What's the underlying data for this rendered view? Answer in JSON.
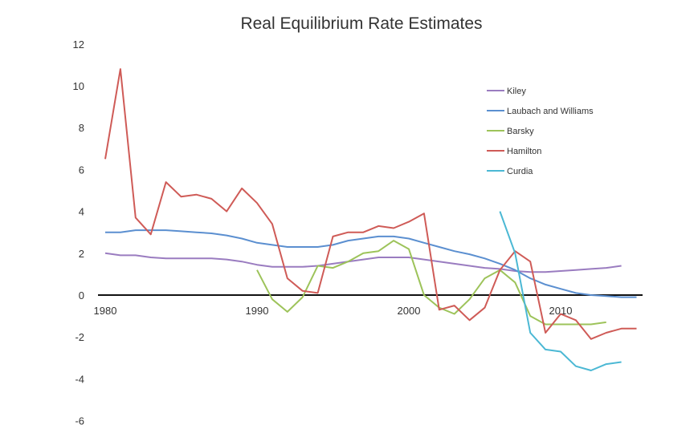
{
  "chart_data": {
    "type": "line",
    "title": "Real Equilibrium Rate Estimates",
    "xlabel": "",
    "ylabel": "",
    "xlim": [
      1979.5,
      2016
    ],
    "ylim": [
      -6,
      12
    ],
    "y_ticks": [
      12,
      10,
      8,
      6,
      4,
      2,
      0,
      -2,
      -4,
      -6
    ],
    "x_ticks": [
      1980,
      1990,
      2000,
      2010
    ],
    "legend_position": "top-right",
    "grid": false,
    "series": [
      {
        "name": "Kiley",
        "color": "#9a7cc0",
        "start": 1980,
        "values": [
          2.0,
          1.9,
          1.9,
          1.8,
          1.75,
          1.75,
          1.75,
          1.75,
          1.7,
          1.6,
          1.45,
          1.35,
          1.35,
          1.35,
          1.4,
          1.5,
          1.6,
          1.7,
          1.8,
          1.8,
          1.8,
          1.7,
          1.6,
          1.5,
          1.4,
          1.3,
          1.25,
          1.15,
          1.1,
          1.1,
          1.15,
          1.2,
          1.25,
          1.3,
          1.4
        ]
      },
      {
        "name": "Laubach and Williams",
        "color": "#5b8fd0",
        "start": 1980,
        "values": [
          3.0,
          3.0,
          3.1,
          3.1,
          3.1,
          3.05,
          3.0,
          2.95,
          2.85,
          2.7,
          2.5,
          2.4,
          2.3,
          2.3,
          2.3,
          2.4,
          2.6,
          2.7,
          2.8,
          2.8,
          2.7,
          2.5,
          2.3,
          2.1,
          1.95,
          1.75,
          1.5,
          1.2,
          0.8,
          0.5,
          0.3,
          0.1,
          0.0,
          -0.05,
          -0.1,
          -0.1
        ]
      },
      {
        "name": "Barsky",
        "color": "#9dc35a",
        "start": 1990,
        "values": [
          1.2,
          -0.2,
          -0.8,
          -0.1,
          1.4,
          1.3,
          1.6,
          2.0,
          2.1,
          2.6,
          2.2,
          0.0,
          -0.6,
          -0.9,
          -0.2,
          0.8,
          1.2,
          0.6,
          -1.0,
          -1.4,
          -1.4,
          -1.4,
          -1.4,
          -1.3
        ]
      },
      {
        "name": "Hamilton",
        "color": "#cf5b57",
        "start": 1980,
        "values": [
          6.5,
          10.8,
          3.7,
          2.9,
          5.4,
          4.7,
          4.8,
          4.6,
          4.0,
          5.1,
          4.4,
          3.4,
          0.8,
          0.2,
          0.1,
          2.8,
          3.0,
          3.0,
          3.3,
          3.2,
          3.5,
          3.9,
          -0.7,
          -0.5,
          -1.2,
          -0.6,
          1.2,
          2.1,
          1.6,
          -1.8,
          -0.9,
          -1.2,
          -2.1,
          -1.8,
          -1.6,
          -1.6
        ]
      },
      {
        "name": "Curdia",
        "color": "#4bb8d4",
        "start": 2006,
        "values": [
          4.0,
          2.0,
          -1.8,
          -2.6,
          -2.7,
          -3.4,
          -3.6,
          -3.3,
          -3.2
        ]
      }
    ]
  }
}
